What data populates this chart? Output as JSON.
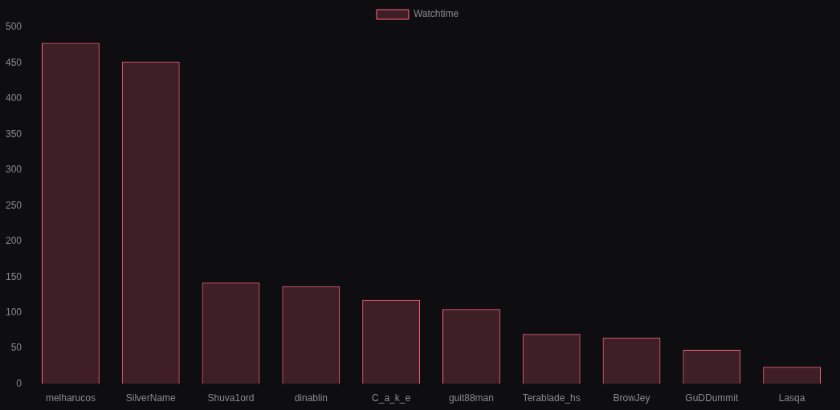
{
  "chart_data": {
    "type": "bar",
    "categories": [
      "melharucos",
      "SilverName",
      "Shuva1ord",
      "dinablin",
      "C_a_k_e",
      "guit88man",
      "Terablade_hs",
      "BrowJey",
      "GuDDummit",
      "Lasqa"
    ],
    "series": [
      {
        "name": "Watchtime",
        "color": "#ff6384",
        "values": [
          478,
          452,
          142,
          137,
          118,
          105,
          70,
          65,
          48,
          24
        ]
      }
    ],
    "ylim": [
      0,
      500
    ],
    "yticks": [
      0,
      50,
      100,
      150,
      200,
      250,
      300,
      350,
      400,
      450,
      500
    ],
    "grid": false,
    "legend": "top"
  }
}
